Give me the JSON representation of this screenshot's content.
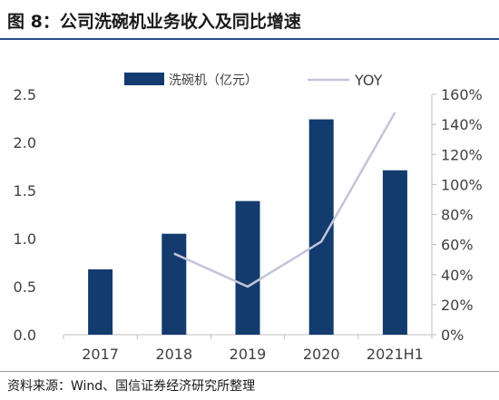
{
  "header": {
    "title": "图 8：公司洗碗机业务收入及同比增速"
  },
  "footer": {
    "source": "资料来源：Wind、国信证券经济研究所整理"
  },
  "colors": {
    "bar": "#133B6E",
    "line": "#C3C5D9",
    "axis": "#BFBFBF",
    "title_rule": "#2A4A8A"
  },
  "chart_data": {
    "type": "bar",
    "categories": [
      "2017",
      "2018",
      "2019",
      "2020",
      "2021H1"
    ],
    "series": [
      {
        "name": "洗碗机（亿元）",
        "type": "bar",
        "axis": "left",
        "values": [
          0.68,
          1.05,
          1.39,
          2.24,
          1.71
        ]
      },
      {
        "name": "YOY",
        "type": "line",
        "axis": "right",
        "values": [
          null,
          0.54,
          0.32,
          0.62,
          1.48
        ]
      }
    ],
    "y_left": {
      "min": 0,
      "max": 2.5,
      "ticks": [
        "0.0",
        "0.5",
        "1.0",
        "1.5",
        "2.0",
        "2.5"
      ]
    },
    "y_right": {
      "min": 0,
      "max": 1.6,
      "ticks": [
        "0%",
        "20%",
        "40%",
        "60%",
        "80%",
        "100%",
        "120%",
        "140%",
        "160%"
      ]
    },
    "legend_position": "top",
    "grid": false
  }
}
